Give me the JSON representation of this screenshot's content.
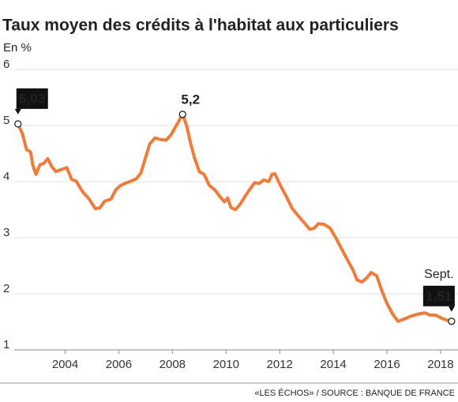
{
  "chart_data": {
    "type": "line",
    "title": "Taux moyen des crédits à l'habitat aux particuliers",
    "subtitle": "En %",
    "source": "«LES ÉCHOS» / SOURCE : BANQUE DE FRANCE",
    "x": [
      2002.24,
      2002.41,
      2002.56,
      2002.71,
      2002.79,
      2002.91,
      2003.06,
      2003.21,
      2003.35,
      2003.5,
      2003.65,
      2003.88,
      2004.06,
      2004.24,
      2004.41,
      2004.65,
      2004.88,
      2005.12,
      2005.29,
      2005.47,
      2005.71,
      2005.88,
      2006.06,
      2006.24,
      2006.41,
      2006.65,
      2006.82,
      2007.0,
      2007.15,
      2007.35,
      2007.56,
      2007.76,
      2007.94,
      2008.18,
      2008.38,
      2008.53,
      2008.68,
      2008.82,
      2009.0,
      2009.18,
      2009.38,
      2009.59,
      2009.76,
      2009.94,
      2010.06,
      2010.18,
      2010.35,
      2010.53,
      2010.71,
      2010.91,
      2011.06,
      2011.24,
      2011.41,
      2011.59,
      2011.71,
      2011.82,
      2012.03,
      2012.24,
      2012.47,
      2012.71,
      2012.91,
      2013.12,
      2013.29,
      2013.44,
      2013.65,
      2013.88,
      2014.09,
      2014.29,
      2014.53,
      2014.74,
      2014.88,
      2015.06,
      2015.24,
      2015.41,
      2015.62,
      2015.82,
      2016.0,
      2016.21,
      2016.41,
      2016.65,
      2016.88,
      2017.18,
      2017.41,
      2017.62,
      2017.82,
      2018.06,
      2018.24,
      2018.41
    ],
    "series": [
      {
        "name": "Taux moyen",
        "color": "#f07b3a",
        "values": [
          5.03,
          4.85,
          4.57,
          4.53,
          4.3,
          4.13,
          4.3,
          4.33,
          4.41,
          4.27,
          4.18,
          4.22,
          4.25,
          4.04,
          4.01,
          3.82,
          3.7,
          3.52,
          3.53,
          3.65,
          3.69,
          3.85,
          3.93,
          3.97,
          4.0,
          4.05,
          4.15,
          4.43,
          4.67,
          4.78,
          4.75,
          4.74,
          4.83,
          5.03,
          5.2,
          5.0,
          4.68,
          4.43,
          4.18,
          4.13,
          3.93,
          3.85,
          3.74,
          3.64,
          3.71,
          3.54,
          3.5,
          3.6,
          3.74,
          3.88,
          3.98,
          3.97,
          4.03,
          4.0,
          4.13,
          4.14,
          3.93,
          3.74,
          3.52,
          3.38,
          3.27,
          3.15,
          3.17,
          3.25,
          3.24,
          3.17,
          3.0,
          2.82,
          2.6,
          2.42,
          2.25,
          2.21,
          2.28,
          2.38,
          2.32,
          2.04,
          1.83,
          1.64,
          1.51,
          1.55,
          1.6,
          1.64,
          1.66,
          1.62,
          1.62,
          1.56,
          1.53,
          1.51
        ],
        "value_labels": [
          "5,03",
          null,
          null,
          null,
          null,
          null,
          null,
          null,
          null,
          null,
          null,
          null,
          null,
          null,
          null,
          null,
          null,
          null,
          null,
          null,
          null,
          null,
          null,
          null,
          null,
          null,
          null,
          null,
          null,
          null,
          null,
          null,
          null,
          null,
          "5,2",
          null,
          null,
          null,
          null,
          null,
          null,
          null,
          null,
          null,
          null,
          null,
          null,
          null,
          null,
          null,
          null,
          null,
          null,
          null,
          null,
          null,
          null,
          null,
          null,
          null,
          null,
          null,
          null,
          null,
          null,
          null,
          null,
          null,
          null,
          null,
          null,
          null,
          null,
          null,
          null,
          null,
          null,
          null,
          null,
          null,
          null,
          null,
          null,
          null,
          null,
          null,
          null,
          "1,51"
        ]
      }
    ],
    "annotation": "Sept.",
    "xlim": [
      2002.1,
      2018.65
    ],
    "xticks": [
      2004,
      2006,
      2008,
      2010,
      2012,
      2014,
      2016,
      2018
    ],
    "ylim": [
      1,
      6
    ],
    "yticks": [
      1,
      2,
      3,
      4,
      5,
      6
    ],
    "grid": true
  }
}
